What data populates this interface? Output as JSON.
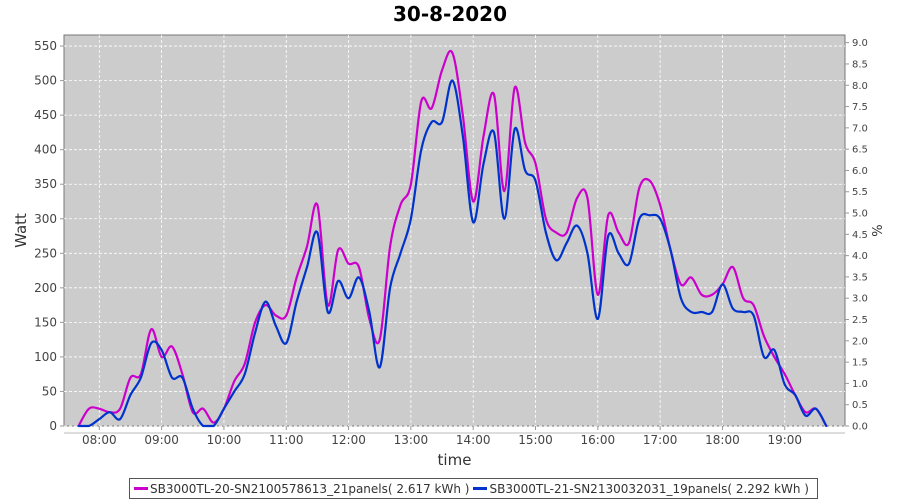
{
  "chart_data": {
    "type": "line",
    "title": "30-8-2020",
    "xlabel": "time",
    "ylabel": "Watt",
    "y2label": "%",
    "ylim": [
      0,
      566
    ],
    "y2lim": [
      0,
      9.18
    ],
    "xlim": [
      "07:26",
      "19:58"
    ],
    "grid": true,
    "legend_position": "bottom",
    "x_ticks": [
      "08:00",
      "09:00",
      "10:00",
      "11:00",
      "12:00",
      "13:00",
      "14:00",
      "15:00",
      "16:00",
      "17:00",
      "18:00",
      "19:00"
    ],
    "y_ticks": [
      "0",
      "50",
      "100",
      "150",
      "200",
      "250",
      "300",
      "350",
      "400",
      "450",
      "500",
      "550"
    ],
    "y2_ticks": [
      "0.0",
      "0.5",
      "1.0",
      "1.5",
      "2.0",
      "2.5",
      "3.0",
      "3.5",
      "4.0",
      "4.5",
      "5.0",
      "5.5",
      "6.0",
      "6.5",
      "7.0",
      "7.5",
      "8.0",
      "8.5",
      "9.0"
    ],
    "x": [
      "07:40",
      "07:50",
      "08:00",
      "08:10",
      "08:20",
      "08:30",
      "08:40",
      "08:50",
      "09:00",
      "09:10",
      "09:20",
      "09:30",
      "09:40",
      "09:50",
      "10:00",
      "10:10",
      "10:20",
      "10:30",
      "10:40",
      "10:50",
      "11:00",
      "11:10",
      "11:20",
      "11:30",
      "11:40",
      "11:50",
      "12:00",
      "12:10",
      "12:20",
      "12:30",
      "12:40",
      "12:50",
      "13:00",
      "13:10",
      "13:20",
      "13:30",
      "13:40",
      "13:50",
      "14:00",
      "14:10",
      "14:20",
      "14:30",
      "14:40",
      "14:50",
      "15:00",
      "15:10",
      "15:20",
      "15:30",
      "15:40",
      "15:50",
      "16:00",
      "16:10",
      "16:20",
      "16:30",
      "16:40",
      "16:50",
      "17:00",
      "17:10",
      "17:20",
      "17:30",
      "17:40",
      "17:50",
      "18:00",
      "18:10",
      "18:20",
      "18:30",
      "18:40",
      "18:50",
      "19:00",
      "19:10",
      "19:20",
      "19:30",
      "19:40"
    ],
    "series": [
      {
        "name": "SB3000TL-20-SN2100578613_21panels( 2.617 kWh )",
        "color": "#cc00cc",
        "values": [
          0,
          25,
          25,
          20,
          25,
          70,
          75,
          140,
          100,
          115,
          75,
          20,
          25,
          5,
          25,
          65,
          90,
          150,
          175,
          160,
          160,
          215,
          260,
          320,
          175,
          255,
          235,
          230,
          155,
          125,
          260,
          320,
          350,
          470,
          460,
          515,
          540,
          450,
          325,
          420,
          480,
          340,
          490,
          410,
          380,
          300,
          280,
          280,
          330,
          330,
          190,
          305,
          280,
          265,
          345,
          355,
          320,
          255,
          205,
          215,
          190,
          190,
          205,
          230,
          185,
          175,
          130,
          100,
          75,
          45,
          20,
          25,
          0
        ]
      },
      {
        "name": "SB3000TL-21-SN2130032031_19panels( 2.292 kWh )",
        "color": "#0033cc",
        "values": [
          0,
          0,
          10,
          20,
          10,
          45,
          70,
          120,
          110,
          70,
          70,
          25,
          0,
          0,
          25,
          50,
          75,
          135,
          180,
          145,
          120,
          180,
          230,
          280,
          165,
          210,
          185,
          215,
          165,
          85,
          200,
          250,
          300,
          400,
          440,
          440,
          500,
          420,
          295,
          380,
          425,
          300,
          430,
          370,
          355,
          280,
          240,
          265,
          290,
          250,
          155,
          275,
          250,
          235,
          300,
          305,
          300,
          255,
          185,
          165,
          165,
          165,
          205,
          170,
          165,
          160,
          100,
          110,
          60,
          45,
          15,
          25,
          0
        ]
      }
    ]
  }
}
